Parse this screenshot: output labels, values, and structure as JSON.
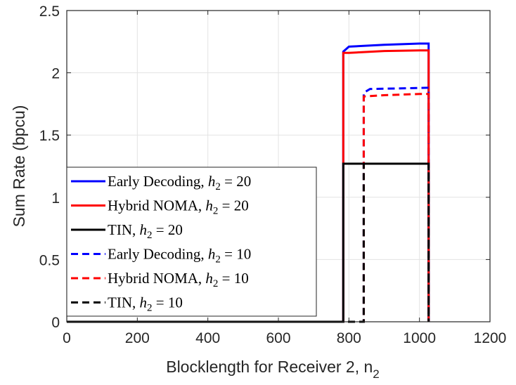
{
  "chart_data": {
    "type": "line",
    "xlabel": "Blocklength for Receiver 2, n",
    "xlabel_subscript": "2",
    "ylabel": "Sum Rate (bpcu)",
    "xlim": [
      0,
      1200
    ],
    "ylim": [
      0,
      2.5
    ],
    "xticks": [
      0,
      200,
      400,
      600,
      800,
      1000,
      1200
    ],
    "yticks": [
      0,
      0.5,
      1,
      1.5,
      2,
      2.5
    ],
    "xtick_labels": [
      "0",
      "200",
      "400",
      "600",
      "800",
      "1000",
      "1200"
    ],
    "ytick_labels": [
      "0",
      "0.5",
      "1",
      "1.5",
      "2",
      "2.5"
    ],
    "grid": true,
    "legend_position": "lower-left",
    "series": [
      {
        "name": "Early Decoding, h₂ = 20",
        "label_text": "Early Decoding, ",
        "color": "#0000ff",
        "dash": "solid",
        "x": [
          0,
          784,
          784,
          800,
          900,
          1000,
          1026,
          1026
        ],
        "y": [
          0,
          0,
          2.17,
          2.21,
          2.225,
          2.235,
          2.235,
          0
        ]
      },
      {
        "name": "Hybrid NOMA, h₂ = 20",
        "label_text": "Hybrid NOMA, ",
        "color": "#ff0000",
        "dash": "solid",
        "x": [
          0,
          784,
          784,
          800,
          900,
          1000,
          1026,
          1026
        ],
        "y": [
          0,
          0,
          2.16,
          2.16,
          2.175,
          2.18,
          2.18,
          0
        ]
      },
      {
        "name": "TIN, h₂ = 20",
        "label_text": "TIN, ",
        "color": "#000000",
        "dash": "solid",
        "x": [
          0,
          784,
          784,
          1026,
          1026
        ],
        "y": [
          0,
          0,
          1.27,
          1.27,
          0
        ]
      },
      {
        "name": "Early Decoding, h₂ = 10",
        "label_text": "Early Decoding, ",
        "color": "#0000ff",
        "dash": "dashed",
        "x": [
          0,
          842,
          842,
          860,
          950,
          1026,
          1026
        ],
        "y": [
          0,
          0,
          1.84,
          1.87,
          1.875,
          1.88,
          0
        ]
      },
      {
        "name": "Hybrid NOMA, h₂ = 10",
        "label_text": "Hybrid NOMA, ",
        "color": "#ff0000",
        "dash": "dashed",
        "x": [
          0,
          842,
          842,
          900,
          1000,
          1026,
          1026
        ],
        "y": [
          0,
          0,
          1.81,
          1.82,
          1.83,
          1.83,
          0
        ]
      },
      {
        "name": "TIN, h₂ = 10",
        "label_text": "TIN, ",
        "color": "#000000",
        "dash": "dashed",
        "x": [
          0,
          842,
          842,
          1026,
          1026
        ],
        "y": [
          0,
          0,
          1.27,
          1.27,
          0
        ]
      }
    ],
    "legend_math": {
      "h": "h",
      "sub": "2",
      "eq": " = ",
      "values": [
        "20",
        "20",
        "20",
        "10",
        "10",
        "10"
      ]
    }
  }
}
